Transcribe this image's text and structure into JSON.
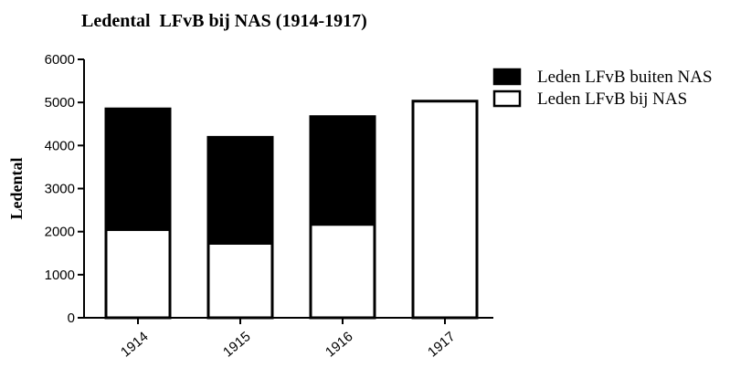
{
  "chart_data": {
    "type": "bar",
    "stacked": true,
    "title": "Ledental  LFvB bij NAS (1914-1917)",
    "xlabel": "",
    "ylabel": "Ledental",
    "categories": [
      "1914",
      "1915",
      "1916",
      "1917"
    ],
    "ylim": [
      0,
      6000
    ],
    "yticks": [
      0,
      1000,
      2000,
      3000,
      4000,
      5000,
      6000
    ],
    "series": [
      {
        "name": "Leden LFvB bij NAS",
        "values": [
          2050,
          1730,
          2170,
          5030
        ],
        "color": "#ffffff"
      },
      {
        "name": "Leden LFvB buiten NAS",
        "values": [
          2800,
          2460,
          2500,
          0
        ],
        "color": "#000000"
      }
    ],
    "legend_entries": [
      "Leden LFvB buiten NAS",
      "Leden LFvB bij NAS"
    ],
    "legend_position": "right",
    "grid": false
  }
}
